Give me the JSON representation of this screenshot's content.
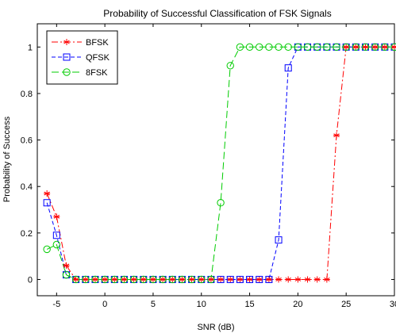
{
  "chart_data": {
    "type": "line",
    "title": "Probability of Successful Classification of FSK Signals",
    "xlabel": "SNR (dB)",
    "ylabel": "Probability of Success",
    "xlim": [
      -7,
      30
    ],
    "ylim": [
      -0.07,
      1.1
    ],
    "xticks": [
      -5,
      0,
      5,
      10,
      15,
      20,
      25,
      30
    ],
    "yticks": [
      0,
      0.2,
      0.4,
      0.6,
      0.8,
      1
    ],
    "grid": false,
    "legend_position": "top-left",
    "x": [
      -6,
      -5,
      -4,
      -3,
      -2,
      -1,
      0,
      1,
      2,
      3,
      4,
      5,
      6,
      7,
      8,
      9,
      10,
      11,
      12,
      13,
      14,
      15,
      16,
      17,
      18,
      19,
      20,
      21,
      22,
      23,
      24,
      25,
      26,
      27,
      28,
      29,
      30
    ],
    "series": [
      {
        "name": "BFSK",
        "color": "#ff0000",
        "marker": "asterisk",
        "line_style": "dash-dot",
        "values": [
          0.37,
          0.27,
          0.06,
          0,
          0,
          0,
          0,
          0,
          0,
          0,
          0,
          0,
          0,
          0,
          0,
          0,
          0,
          0,
          0,
          0,
          0,
          0,
          0,
          0,
          0,
          0,
          0,
          0,
          0,
          0,
          0.62,
          1,
          1,
          1,
          1,
          1,
          1
        ]
      },
      {
        "name": "QFSK",
        "color": "#0000ff",
        "marker": "square",
        "line_style": "dashed",
        "values": [
          0.33,
          0.19,
          0.02,
          0,
          0,
          0,
          0,
          0,
          0,
          0,
          0,
          0,
          0,
          0,
          0,
          0,
          0,
          0,
          0,
          0,
          0,
          0,
          0,
          0,
          0.17,
          0.91,
          1,
          1,
          1,
          1,
          1,
          1,
          1,
          1,
          1,
          1,
          1
        ]
      },
      {
        "name": "8FSK",
        "color": "#00cc00",
        "marker": "circle",
        "line_style": "long-dash",
        "values": [
          0.13,
          0.15,
          0.02,
          0,
          0,
          0,
          0,
          0,
          0,
          0,
          0,
          0,
          0,
          0,
          0,
          0,
          0,
          0,
          0.33,
          0.92,
          1,
          1,
          1,
          1,
          1,
          1,
          1,
          1,
          1,
          1,
          1,
          1,
          1,
          1,
          1,
          1,
          1
        ]
      }
    ]
  }
}
